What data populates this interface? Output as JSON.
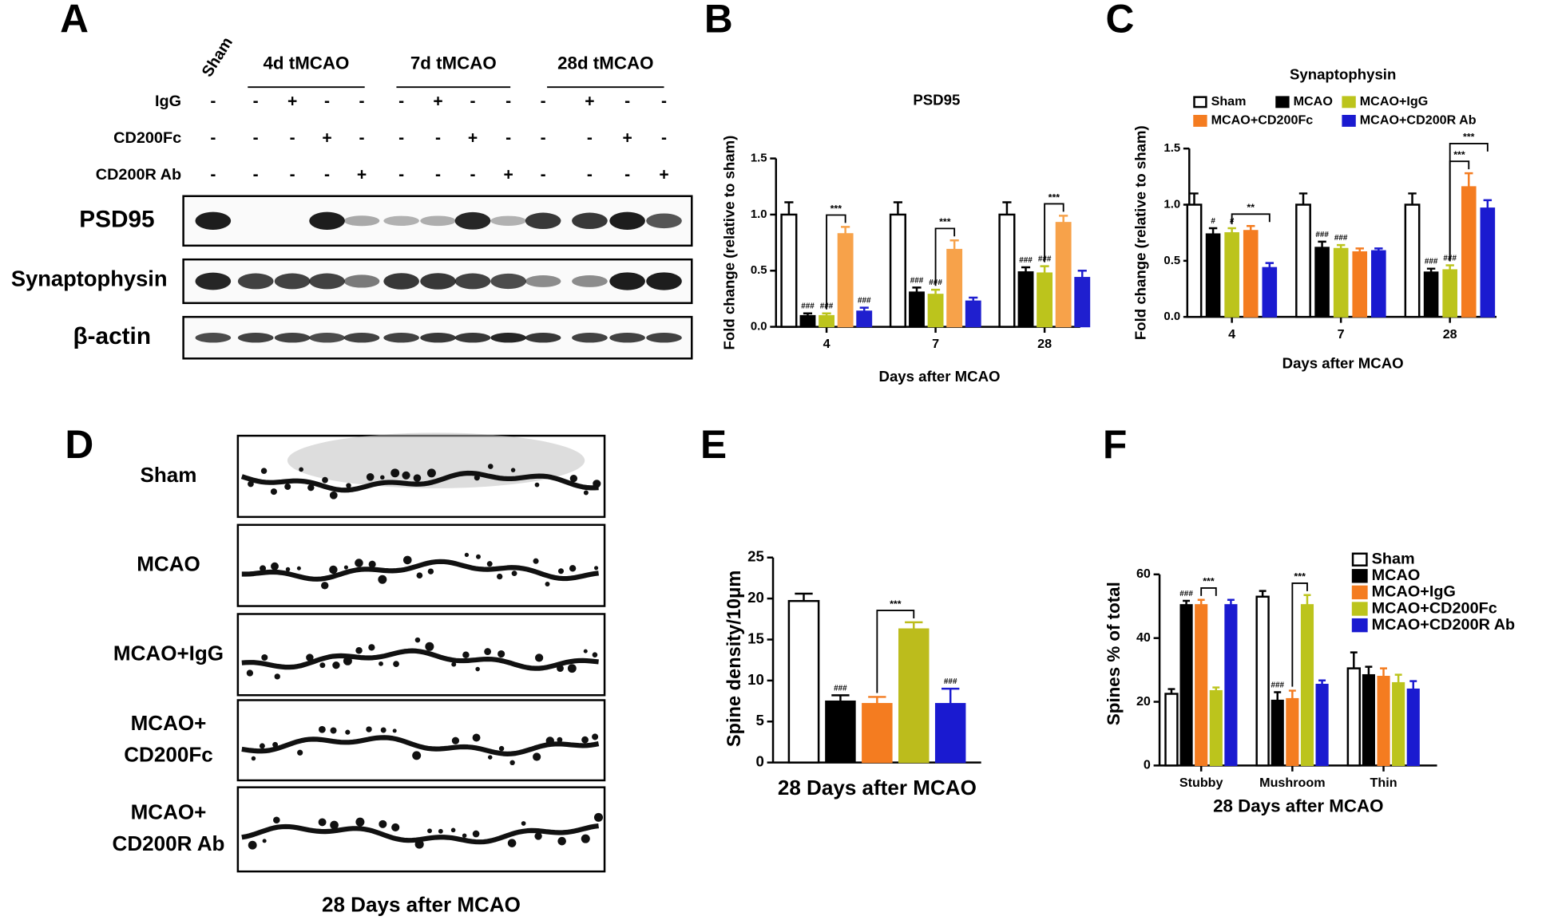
{
  "panel_a": {
    "label": "A",
    "lane_header": "Sham",
    "groups": [
      "4d tMCAO",
      "7d tMCAO",
      "28d tMCAO"
    ],
    "treatments": [
      {
        "name": "IgG",
        "signs": [
          "-",
          "-",
          "+",
          "-",
          "-",
          "-",
          "+",
          "-",
          "-",
          "-",
          "+",
          "-",
          "-"
        ]
      },
      {
        "name": "CD200Fc",
        "signs": [
          "-",
          "-",
          "-",
          "+",
          "-",
          "-",
          "-",
          "+",
          "-",
          "-",
          "-",
          "+",
          "-"
        ]
      },
      {
        "name": "CD200R Ab",
        "signs": [
          "-",
          "-",
          "-",
          "-",
          "+",
          "-",
          "-",
          "-",
          "+",
          "-",
          "-",
          "-",
          "+"
        ]
      }
    ],
    "blots": [
      "PSD95",
      "Synaptophysin",
      "β-actin"
    ]
  },
  "panel_d": {
    "label": "D",
    "rows": [
      [
        "Sham"
      ],
      [
        "MCAO"
      ],
      [
        "MCAO+IgG"
      ],
      [
        "MCAO+",
        "CD200Fc"
      ],
      [
        "MCAO+",
        "CD200R Ab"
      ]
    ],
    "caption": "28 Days after MCAO"
  },
  "chart_data": [
    {
      "panel": "B",
      "type": "bar",
      "title": "PSD95",
      "x_label": "Days after MCAO",
      "y_label": "Fold change (relative to sham)",
      "categories": [
        "4",
        "7",
        "28"
      ],
      "ylim": [
        0,
        1.5
      ],
      "yticks": [
        {
          "value": 0,
          "label": "0.0"
        },
        0.5,
        {
          "value": 1,
          "label": "1.0"
        },
        1.5
      ],
      "series": [
        {
          "color": "#ffffff",
          "values": [
            1.0,
            1.0,
            1.0
          ],
          "errors": [
            0.11,
            0.11,
            0.11
          ]
        },
        {
          "color": "#000000",
          "values": [
            0.1,
            0.31,
            0.49
          ],
          "errors": [
            0.02,
            0.04,
            0.04
          ],
          "significance": [
            "###",
            "###",
            "###"
          ]
        },
        {
          "color": "#bcc41c",
          "values": [
            0.1,
            0.29,
            0.48
          ],
          "errors": [
            0.02,
            0.04,
            0.06
          ],
          "significance": [
            "###",
            "###",
            "###"
          ]
        },
        {
          "color": "#f7a24a",
          "values": [
            0.83,
            0.69,
            0.93
          ],
          "errors": [
            0.06,
            0.08,
            0.06
          ]
        },
        {
          "color": "#1f1fcf",
          "values": [
            0.14,
            0.23,
            0.44
          ],
          "errors": [
            0.03,
            0.03,
            0.06
          ],
          "significance": [
            "###",
            null,
            null
          ]
        }
      ],
      "comparisons": [
        {
          "text": "***",
          "category": 0,
          "from": 2,
          "to": 3
        },
        {
          "text": "***",
          "category": 1,
          "from": 2,
          "to": 3
        },
        {
          "text": "***",
          "category": 2,
          "from": 2,
          "to": 3
        }
      ]
    },
    {
      "panel": "C",
      "type": "bar",
      "title": "Synaptophysin",
      "x_label": "Days after MCAO",
      "y_label": "Fold change (relative to sham)",
      "categories": [
        "4",
        "7",
        "28"
      ],
      "ylim": [
        0,
        1.5
      ],
      "yticks": [
        {
          "value": 0,
          "label": "0.0"
        },
        0.5,
        {
          "value": 1,
          "label": "1.0"
        },
        1.5
      ],
      "series": [
        {
          "name": "Sham",
          "color": "#ffffff",
          "values": [
            1.0,
            1.0,
            1.0
          ],
          "errors": [
            0.1,
            0.1,
            0.1
          ]
        },
        {
          "name": "MCAO",
          "color": "#000000",
          "values": [
            0.74,
            0.62,
            0.4
          ],
          "errors": [
            0.05,
            0.05,
            0.03
          ],
          "significance": [
            "#",
            "###",
            "###"
          ]
        },
        {
          "name": "MCAO+IgG",
          "color": "#bcc41c",
          "values": [
            0.75,
            0.61,
            0.42
          ],
          "errors": [
            0.04,
            0.03,
            0.04
          ],
          "significance": [
            "#",
            "###",
            "###"
          ]
        },
        {
          "name": "MCAO+CD200Fc",
          "color": "#f47c20",
          "values": [
            0.77,
            0.58,
            1.16
          ],
          "errors": [
            0.04,
            0.03,
            0.12
          ]
        },
        {
          "name": "MCAO+CD200R Ab",
          "color": "#1a1ad0",
          "values": [
            0.44,
            0.59,
            0.97
          ],
          "errors": [
            0.04,
            0.02,
            0.07
          ]
        }
      ],
      "comparisons": [
        {
          "text": "**",
          "category": 0,
          "from": 2,
          "to": 4
        },
        {
          "text": "***",
          "category": 2,
          "from": 2,
          "to": 3
        },
        {
          "text": "***",
          "category": 2,
          "from": 2,
          "to": 4
        }
      ]
    },
    {
      "panel": "E",
      "type": "bar",
      "x_label": "28 Days after MCAO",
      "y_label": "Spine density/10μm",
      "ylim": [
        0,
        25
      ],
      "yticks": [
        0,
        5,
        10,
        15,
        20,
        25
      ],
      "values": [
        19.7,
        7.5,
        7.2,
        16.3,
        7.2
      ],
      "errors": [
        0.9,
        0.7,
        0.8,
        0.8,
        1.8
      ],
      "colors": [
        "#ffffff",
        "#000000",
        "#f47c20",
        "#bcbc1c",
        "#1a1ad0"
      ],
      "significance": [
        null,
        "###",
        null,
        null,
        "###"
      ],
      "comparisons": [
        {
          "text": "***",
          "from": 2,
          "to": 3
        }
      ]
    },
    {
      "panel": "F",
      "type": "bar",
      "x_label": "28 Days after MCAO",
      "y_label": "Spines % of total",
      "categories": [
        "Stubby",
        "Mushroom",
        "Thin"
      ],
      "ylim": [
        0,
        60
      ],
      "yticks": [
        0,
        20,
        40,
        60
      ],
      "series": [
        {
          "name": "Sham",
          "color": "#ffffff",
          "values": [
            22.5,
            53,
            30.5
          ],
          "errors": [
            1.5,
            1.8,
            5
          ]
        },
        {
          "name": "MCAO",
          "color": "#000000",
          "values": [
            50.5,
            20.5,
            28.5
          ],
          "errors": [
            1.2,
            2.5,
            2.5
          ],
          "significance": [
            "###",
            "###",
            null
          ]
        },
        {
          "name": "MCAO+IgG",
          "color": "#f47c20",
          "values": [
            50.5,
            21,
            28
          ],
          "errors": [
            1.5,
            2.5,
            2.5
          ]
        },
        {
          "name": "MCAO+CD200Fc",
          "color": "#bcc41c",
          "values": [
            23.5,
            50.5,
            26
          ],
          "errors": [
            1,
            3,
            2.5
          ]
        },
        {
          "name": "MCAO+CD200R Ab",
          "color": "#1a1ad0",
          "values": [
            50.5,
            25.5,
            24
          ],
          "errors": [
            1.5,
            1.2,
            2.5
          ]
        }
      ],
      "comparisons": [
        {
          "text": "***",
          "category": 0,
          "from": 2,
          "to": 3
        },
        {
          "text": "***",
          "category": 1,
          "from": 2,
          "to": 3
        }
      ]
    }
  ]
}
